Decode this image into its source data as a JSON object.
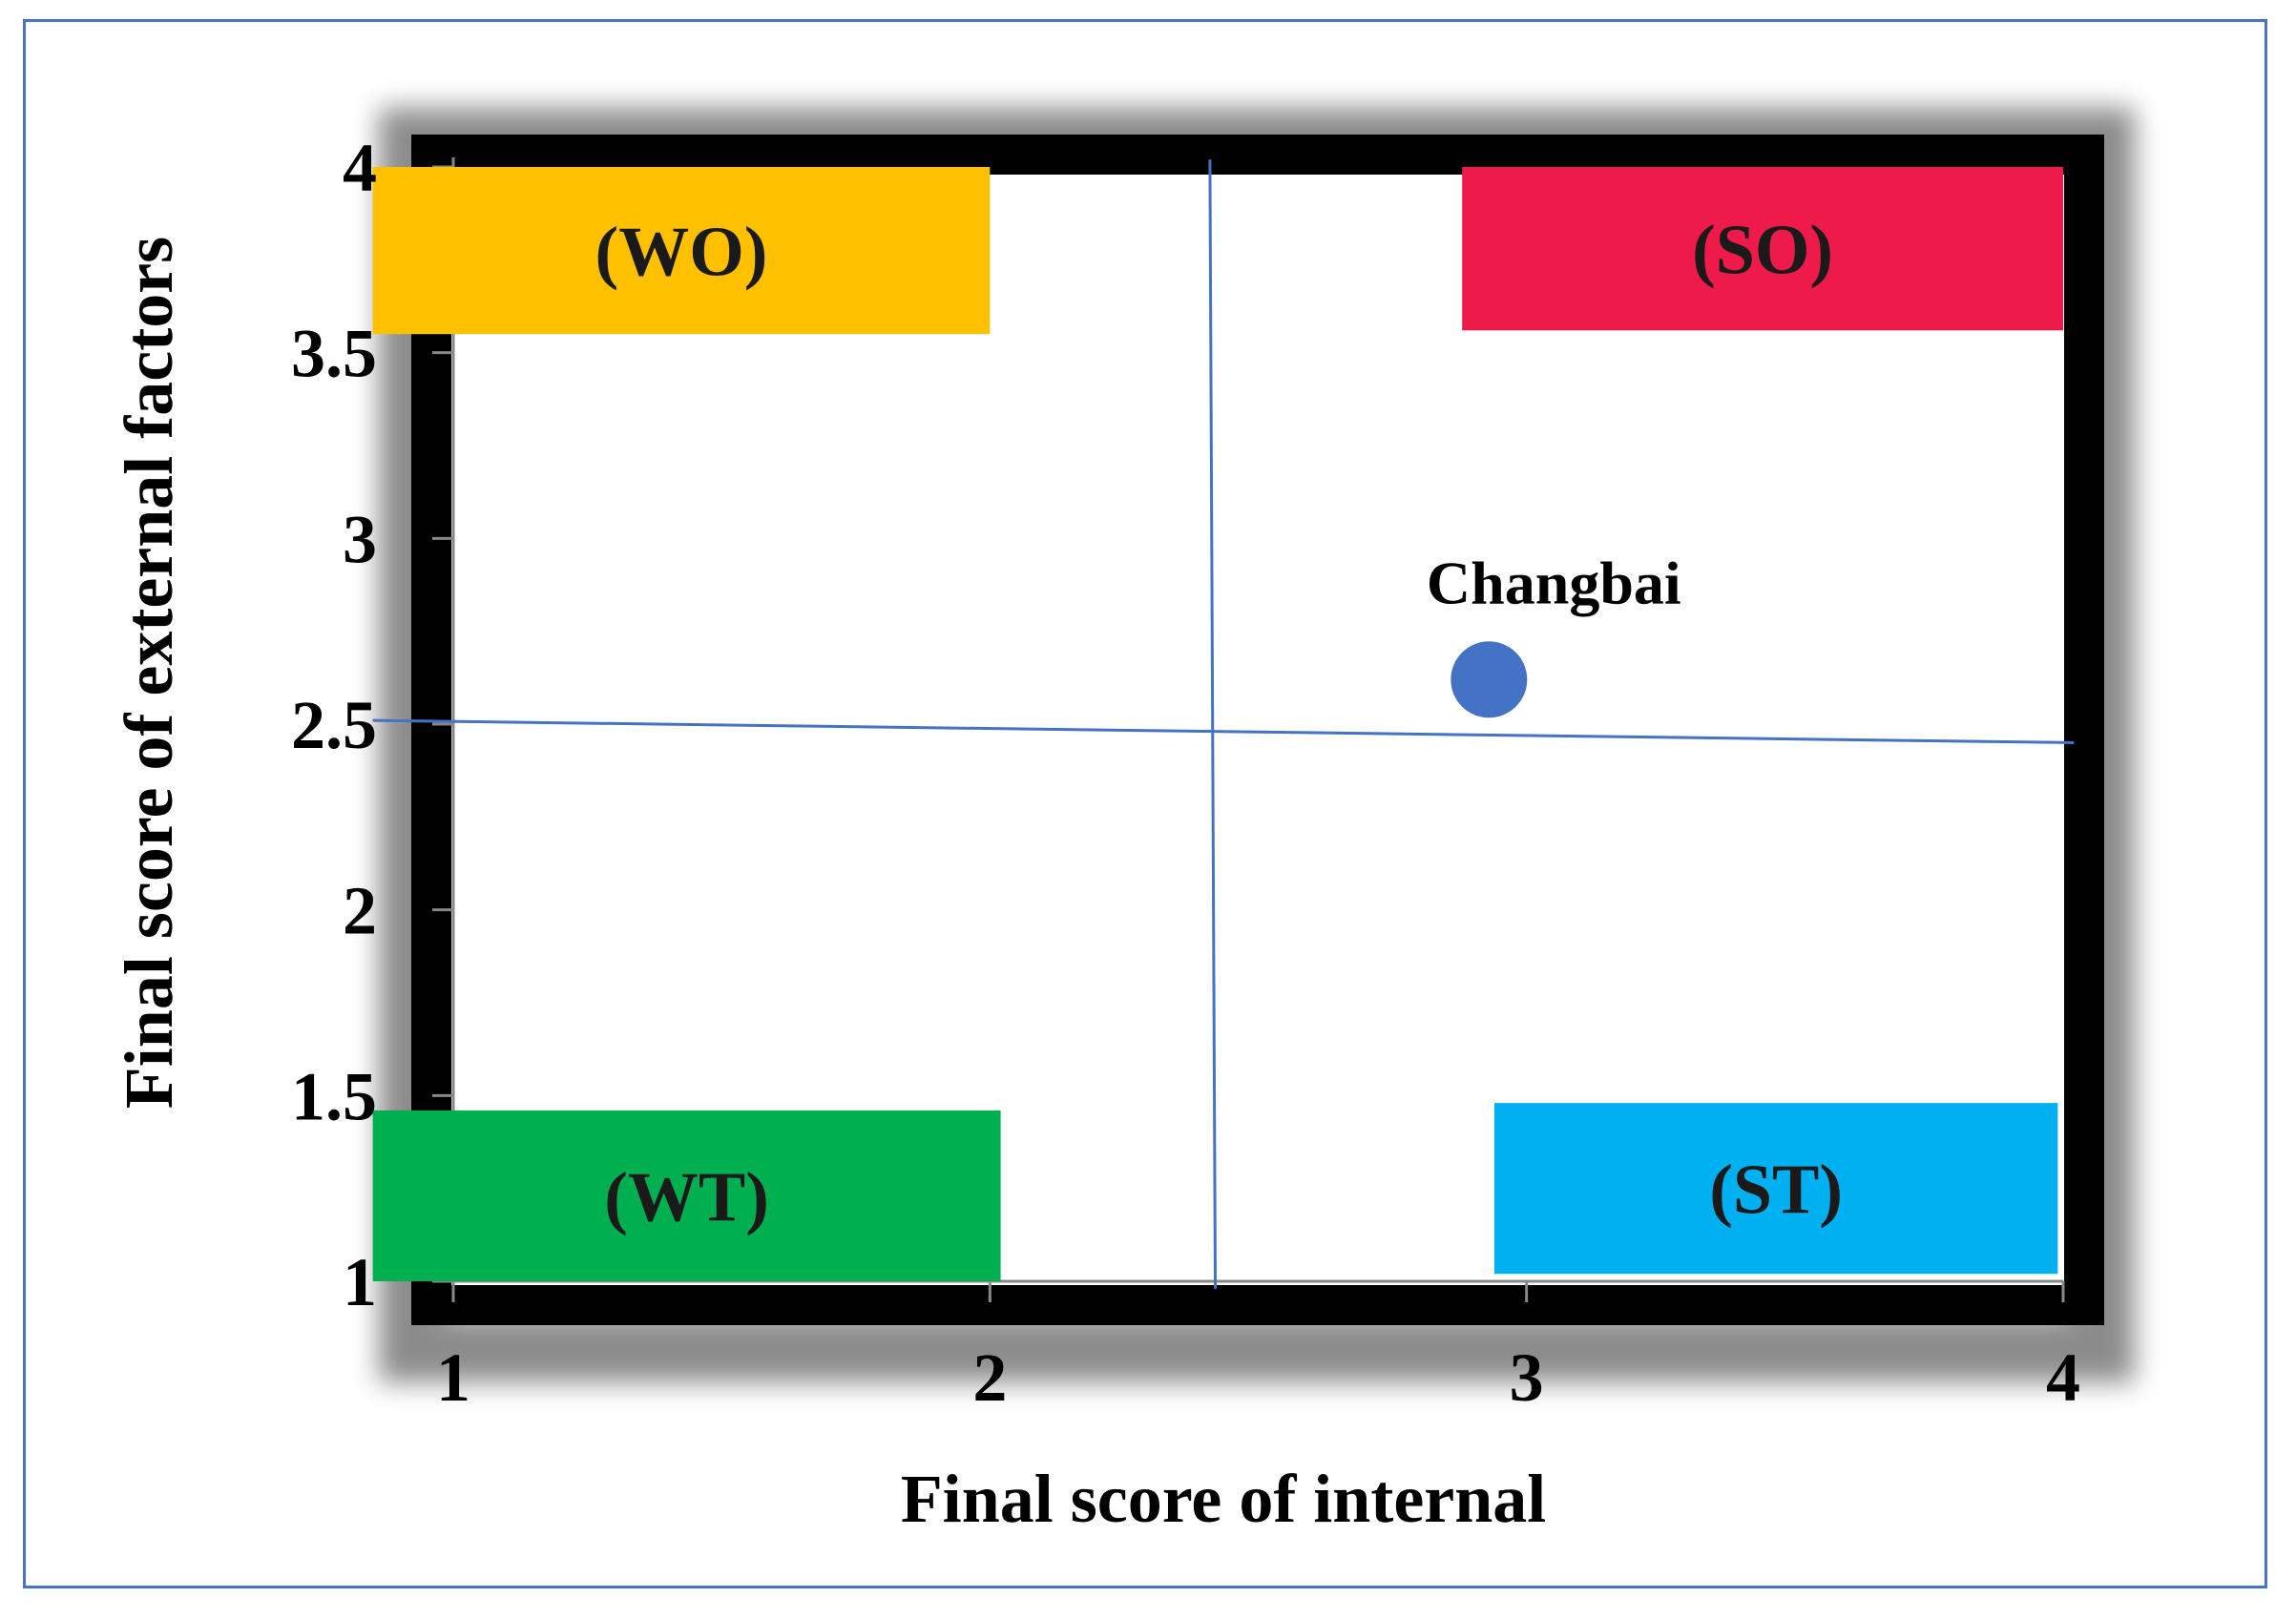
{
  "chart_data": {
    "type": "scatter",
    "xlabel": "Final score of internal",
    "ylabel": "Final score of external factors",
    "xlim": [
      1,
      4
    ],
    "ylim": [
      1,
      4
    ],
    "x_ticks": [
      "1",
      "2",
      "3",
      "4"
    ],
    "y_ticks": [
      "1",
      "1.5",
      "2",
      "2.5",
      "3",
      "3.5",
      "4"
    ],
    "points": [
      {
        "label": "Changbai",
        "x": 2.93,
        "y": 2.62
      }
    ],
    "quadrants": [
      {
        "label": "(WO)",
        "color": "#ffc000",
        "x0": 0.85,
        "x1": 2.0,
        "y0": 3.55,
        "y1": 4.0
      },
      {
        "label": "(SO)",
        "color": "#ee1a4a",
        "x0": 2.88,
        "x1": 4.0,
        "y0": 3.56,
        "y1": 4.0
      },
      {
        "label": "(WT)",
        "color": "#00b050",
        "x0": 0.85,
        "x1": 2.02,
        "y0": 1.0,
        "y1": 1.46
      },
      {
        "label": "(ST)",
        "color": "#00b0f0",
        "x0": 2.94,
        "x1": 3.99,
        "y0": 1.02,
        "y1": 1.48
      }
    ],
    "divider_lines": [
      {
        "x1": 0.85,
        "y1": 2.51,
        "x2": 4.02,
        "y2": 2.45
      },
      {
        "x1": 2.41,
        "y1": 4.02,
        "x2": 2.42,
        "y2": 0.98
      }
    ],
    "colors": {
      "point": "#4472c4",
      "divider": "#4472c4",
      "frame": "#000000"
    },
    "grid": false,
    "legend": "none"
  }
}
